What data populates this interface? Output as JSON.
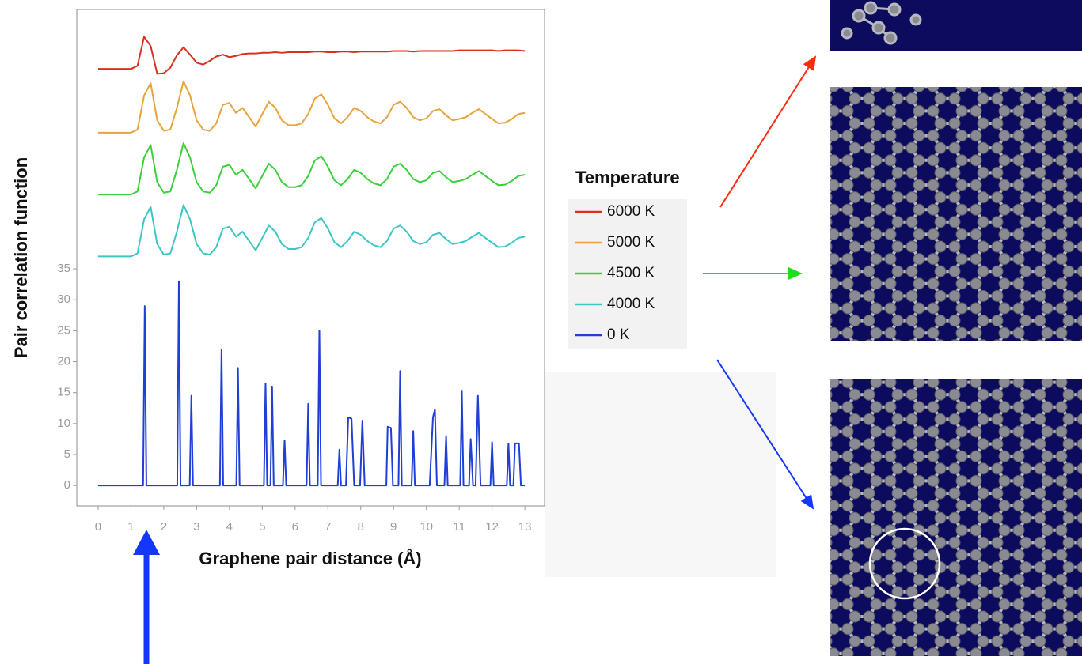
{
  "chart_data": {
    "type": "line",
    "xlabel": "Graphene pair distance (Å)",
    "ylabel": "Pair correlation function",
    "legend_title": "Temperature",
    "legend": "right",
    "xlim": [
      -0.65,
      13.6
    ],
    "ylim": [
      -3.3,
      76.9
    ],
    "xticks": [
      0,
      1,
      2,
      3,
      4,
      5,
      6,
      7,
      8,
      9,
      10,
      11,
      12,
      13
    ],
    "yticks": [
      0,
      5,
      10,
      15,
      20,
      25,
      30,
      35
    ],
    "x": [
      0,
      0.2,
      0.4,
      0.6,
      0.8,
      1.0,
      1.2,
      1.4,
      1.6,
      1.8,
      2.0,
      2.2,
      2.4,
      2.6,
      2.8,
      3.0,
      3.2,
      3.4,
      3.6,
      3.8,
      4.0,
      4.2,
      4.4,
      4.6,
      4.8,
      5.0,
      5.2,
      5.4,
      5.6,
      5.8,
      6.0,
      6.2,
      6.4,
      6.6,
      6.8,
      7.0,
      7.2,
      7.4,
      7.6,
      7.8,
      8.0,
      8.2,
      8.4,
      8.6,
      8.8,
      9.0,
      9.2,
      9.4,
      9.6,
      9.8,
      10.0,
      10.2,
      10.4,
      10.6,
      10.8,
      11.0,
      11.2,
      11.4,
      11.6,
      11.8,
      12.0,
      12.2,
      12.4,
      12.6,
      12.8,
      13.0
    ],
    "series": [
      {
        "name": "6000 K",
        "color": "#d7301f",
        "values": [
          67.3,
          67.3,
          67.3,
          67.3,
          67.3,
          67.3,
          67.8,
          72.5,
          71,
          66.5,
          66.6,
          67.5,
          69.5,
          70.8,
          69.6,
          68.3,
          68,
          68.6,
          69.3,
          69.6,
          69.2,
          69.4,
          69.7,
          69.8,
          69.8,
          69.9,
          69.9,
          70,
          69.9,
          70,
          70,
          70,
          70,
          70.1,
          70.1,
          70,
          70,
          70.1,
          70.1,
          70,
          70.1,
          70.1,
          70.1,
          70.1,
          70.1,
          70.2,
          70.2,
          70.2,
          70.1,
          70.2,
          70.2,
          70.2,
          70.2,
          70.2,
          70.2,
          70.3,
          70.3,
          70.3,
          70.3,
          70.3,
          70.3,
          70.2,
          70.3,
          70.3,
          70.3,
          70.2
        ]
      },
      {
        "name": "5000 K",
        "color": "#e8a33a",
        "values": [
          57,
          57,
          57,
          57,
          57,
          57,
          57.5,
          63,
          65,
          59,
          57.3,
          57.5,
          61,
          65.3,
          63,
          59,
          57.5,
          57.3,
          58.5,
          61.5,
          61.8,
          60.2,
          61,
          59.5,
          58,
          60,
          62,
          61,
          59,
          58.2,
          58.2,
          58.5,
          60,
          62.5,
          63.2,
          61.5,
          59.3,
          58.5,
          59.5,
          61,
          60.5,
          59.5,
          58.8,
          58.5,
          59.5,
          61.5,
          62,
          61,
          59.5,
          59,
          59.3,
          60.5,
          60.8,
          59.8,
          59,
          59.2,
          59.5,
          60.2,
          60.8,
          60,
          59.2,
          58.5,
          58.6,
          59.2,
          60,
          60.2
        ]
      },
      {
        "name": "4500 K",
        "color": "#3ccf3c",
        "values": [
          47,
          47,
          47,
          47,
          47,
          47,
          47.5,
          53,
          55,
          49,
          47.3,
          47.5,
          51,
          55.3,
          53,
          49,
          47.5,
          47.3,
          48.5,
          51.5,
          51.8,
          50.2,
          51,
          49.5,
          48,
          50,
          52,
          51,
          49,
          48.2,
          48.2,
          48.5,
          50,
          52.5,
          53.2,
          51.5,
          49.3,
          48.5,
          49.5,
          51,
          50.5,
          49.5,
          48.8,
          48.5,
          49.5,
          51.5,
          52,
          51,
          49.5,
          49,
          49.3,
          50.5,
          50.8,
          49.8,
          49,
          49.2,
          49.5,
          50.2,
          50.8,
          50,
          49.2,
          48.5,
          48.6,
          49.2,
          50,
          50.2
        ]
      },
      {
        "name": "4000 K",
        "color": "#3cc6c6",
        "values": [
          37,
          37,
          37,
          37,
          37,
          37,
          37.5,
          43,
          45,
          39,
          37.3,
          37.5,
          41,
          45.3,
          43,
          39,
          37.5,
          37.3,
          38.5,
          41.5,
          41.8,
          40.2,
          41,
          39.5,
          38,
          40,
          42,
          41,
          39,
          38.2,
          38.2,
          38.5,
          40,
          42.5,
          43.2,
          41.5,
          39.3,
          38.5,
          39.5,
          41,
          40.5,
          39.5,
          38.8,
          38.5,
          39.5,
          41.5,
          42,
          41,
          39.5,
          39,
          39.3,
          40.5,
          40.8,
          39.8,
          39,
          39.2,
          39.5,
          40.2,
          40.8,
          40,
          39.2,
          38.5,
          38.6,
          39.2,
          40,
          40.2
        ]
      },
      {
        "name": "0 K",
        "color": "#1f3fd6",
        "x": [
          0,
          1.37,
          1.42,
          1.47,
          2.41,
          2.46,
          2.51,
          2.79,
          2.84,
          2.89,
          3.71,
          3.76,
          3.81,
          4.21,
          4.26,
          4.31,
          5.05,
          5.1,
          5.15,
          5.25,
          5.3,
          5.35,
          5.63,
          5.68,
          5.73,
          6.35,
          6.4,
          6.45,
          6.69,
          6.74,
          6.79,
          7.3,
          7.35,
          7.4,
          7.55,
          7.62,
          7.72,
          7.8,
          7.98,
          8.05,
          8.12,
          8.78,
          8.82,
          8.92,
          8.98,
          9.15,
          9.2,
          9.25,
          9.55,
          9.6,
          9.65,
          10.1,
          10.2,
          10.26,
          10.32,
          10.55,
          10.6,
          10.65,
          11.03,
          11.08,
          11.13,
          11.3,
          11.35,
          11.42,
          11.5,
          11.57,
          11.65,
          11.95,
          12.0,
          12.05,
          12.45,
          12.5,
          12.55,
          12.65,
          12.7,
          12.82,
          12.88,
          13
        ],
        "values": [
          0,
          0,
          29,
          0,
          0,
          33,
          0,
          0,
          14.5,
          0,
          0,
          22,
          0,
          0,
          19,
          0,
          0,
          16.5,
          0,
          0,
          16,
          0,
          0,
          7.3,
          0,
          0,
          13.2,
          0,
          0,
          25,
          0,
          0,
          5.8,
          0,
          0,
          11,
          10.8,
          0,
          0,
          10.5,
          0,
          0,
          9.5,
          9.3,
          0,
          0,
          18.5,
          0,
          0,
          8.8,
          0,
          0,
          11,
          12.3,
          0,
          0,
          8,
          0,
          0,
          15.2,
          0,
          0,
          7.5,
          0,
          0,
          14.5,
          0,
          0,
          7,
          0,
          0,
          6.8,
          0,
          0,
          6.8,
          6.8,
          0,
          0
        ]
      }
    ]
  }
}
